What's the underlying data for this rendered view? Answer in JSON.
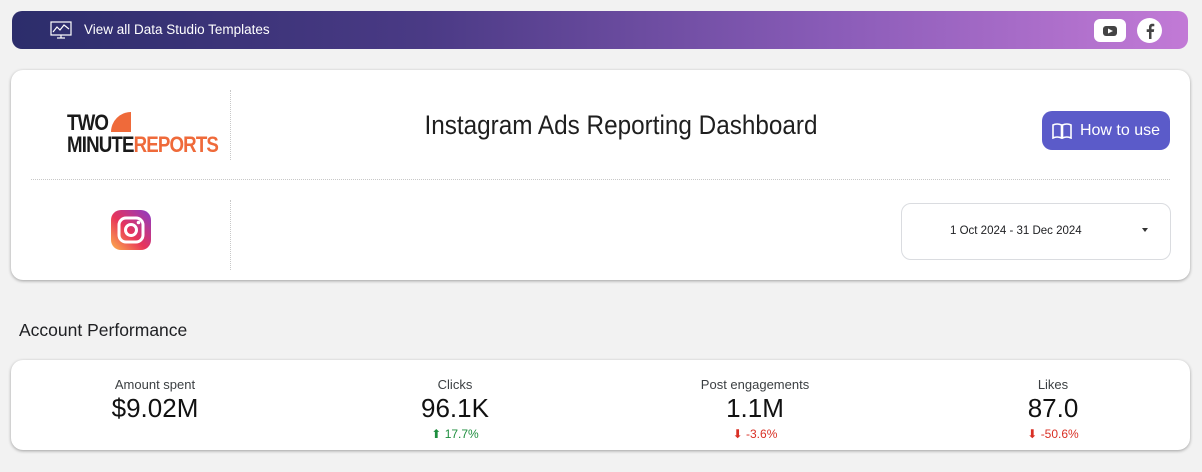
{
  "topbar": {
    "link_label": "View all Data Studio Templates",
    "gradient": [
      "#2c2d6b",
      "#c27ad6"
    ],
    "social_icons": [
      "youtube-icon",
      "facebook-icon"
    ]
  },
  "header": {
    "logo_line1": "TWO",
    "logo_line2a": "MINUTE",
    "logo_line2b": "REPORTS",
    "title": "Instagram Ads Reporting Dashboard",
    "how_to_label": "How to use",
    "accent": "#5b5bc9"
  },
  "date_range": {
    "value": "1 Oct 2024 - 31 Dec 2024"
  },
  "section": {
    "title": "Account Performance"
  },
  "kpis": [
    {
      "label": "Amount spent",
      "value": "$9.02M",
      "change": ""
    },
    {
      "label": "Clicks",
      "value": "96.1K",
      "change": "17.7%",
      "direction": "up"
    },
    {
      "label": "Post engagements",
      "value": "1.1M",
      "change": "-3.6%",
      "direction": "down"
    },
    {
      "label": "Likes",
      "value": "87.0",
      "change": "-50.6%",
      "direction": "down"
    }
  ]
}
